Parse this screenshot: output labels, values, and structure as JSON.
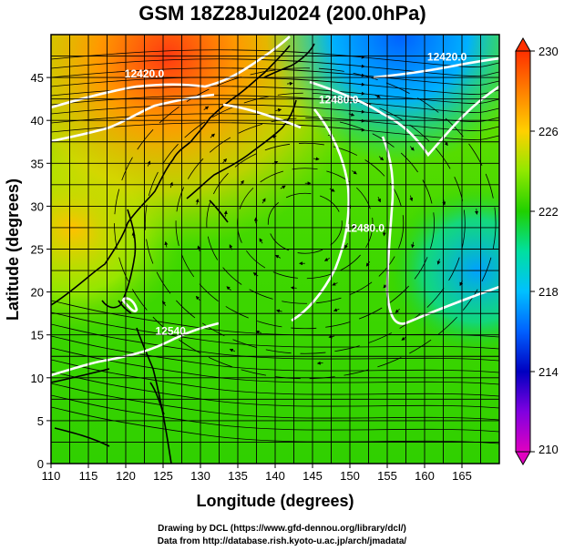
{
  "title": "GSM 18Z28Jul2024 (200.0hPa)",
  "x_axis": {
    "label": "Longitude (degrees)",
    "ticks": [
      "110",
      "115",
      "120",
      "125",
      "130",
      "135",
      "140",
      "145",
      "150",
      "155",
      "160",
      "165"
    ],
    "range": [
      110,
      170
    ]
  },
  "y_axis": {
    "label": "Latitude  (degrees)",
    "ticks": [
      "0",
      "5",
      "10",
      "15",
      "20",
      "25",
      "30",
      "35",
      "40",
      "45"
    ],
    "range": [
      0,
      50
    ]
  },
  "colorbar": {
    "ticks": [
      "210",
      "214",
      "218",
      "222",
      "226",
      "230"
    ],
    "range": [
      210,
      230
    ],
    "colors": [
      "#e000c0",
      "#8000e0",
      "#0000c0",
      "#0060ff",
      "#00c0ff",
      "#00e0a0",
      "#20d000",
      "#70e000",
      "#d0f000",
      "#ffd000",
      "#ff8000",
      "#ff3000"
    ]
  },
  "contour_labels": [
    {
      "text": "12420.0",
      "lon": 122.5,
      "lat": 45.0
    },
    {
      "text": "12420.0",
      "lon": 163.0,
      "lat": 47.0
    },
    {
      "text": "12480.0",
      "lon": 148.5,
      "lat": 42.0
    },
    {
      "text": "12480.0",
      "lon": 152.0,
      "lat": 27.0
    },
    {
      "text": "12540",
      "lon": 126.0,
      "lat": 15.0
    }
  ],
  "credits": {
    "line1": "Drawing by DCL (https://www.gfd-dennou.org/library/dcl/)",
    "line2": "Data from http://database.rish.kyoto-u.ac.jp/arch/jmadata/"
  },
  "colors": {
    "contour": "#ffffff",
    "coast": "#000000",
    "grid": "#000000"
  }
}
